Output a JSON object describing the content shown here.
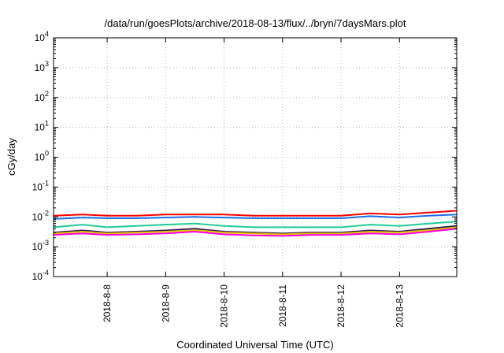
{
  "chart_data": {
    "type": "line",
    "title": "/data/run/goesPlots/archive/2018-08-13/flux/../bryn/7daysMars.plot",
    "xlabel": "Coordinated Universal Time (UTC)",
    "ylabel": "cGy/day",
    "yscale": "log",
    "ylim": [
      0.0001,
      10000
    ],
    "xlim": [
      "2018-08-07T02:00",
      "2018-08-13T23:30"
    ],
    "x_ticks": [
      "2018-8-8",
      "2018-8-9",
      "2018-8-10",
      "2018-8-11",
      "2018-8-12",
      "2018-8-13"
    ],
    "y_ticks": [
      {
        "base": "10",
        "exp": "-4"
      },
      {
        "base": "10",
        "exp": "-3"
      },
      {
        "base": "10",
        "exp": "-2"
      },
      {
        "base": "10",
        "exp": "-1"
      },
      {
        "base": "10",
        "exp": "0"
      },
      {
        "base": "10",
        "exp": "1"
      },
      {
        "base": "10",
        "exp": "2"
      },
      {
        "base": "10",
        "exp": "3"
      },
      {
        "base": "10",
        "exp": "4"
      }
    ],
    "grid": true,
    "series": [
      {
        "color": "#ff0000",
        "x": [
          "2018-08-07T02:00",
          "2018-08-07T14:00",
          "2018-08-08T00:00",
          "2018-08-08T12:00",
          "2018-08-09T00:00",
          "2018-08-09T12:00",
          "2018-08-10T00:00",
          "2018-08-10T12:00",
          "2018-08-11T00:00",
          "2018-08-11T12:00",
          "2018-08-12T00:00",
          "2018-08-12T12:00",
          "2018-08-13T00:00",
          "2018-08-13T12:00",
          "2018-08-13T23:30"
        ],
        "values": [
          0.011,
          0.012,
          0.011,
          0.011,
          0.012,
          0.012,
          0.012,
          0.011,
          0.011,
          0.011,
          0.011,
          0.013,
          0.012,
          0.014,
          0.016
        ]
      },
      {
        "color": "#1f6fe8",
        "x": [
          "2018-08-07T02:00",
          "2018-08-07T14:00",
          "2018-08-08T00:00",
          "2018-08-08T12:00",
          "2018-08-09T00:00",
          "2018-08-09T12:00",
          "2018-08-10T00:00",
          "2018-08-10T12:00",
          "2018-08-11T00:00",
          "2018-08-11T12:00",
          "2018-08-12T00:00",
          "2018-08-12T12:00",
          "2018-08-13T00:00",
          "2018-08-13T12:00",
          "2018-08-13T23:30"
        ],
        "values": [
          0.0085,
          0.0095,
          0.009,
          0.009,
          0.0095,
          0.01,
          0.0095,
          0.009,
          0.009,
          0.009,
          0.009,
          0.0105,
          0.0095,
          0.011,
          0.012
        ]
      },
      {
        "color": "#1fcc99",
        "x": [
          "2018-08-07T02:00",
          "2018-08-07T14:00",
          "2018-08-08T00:00",
          "2018-08-08T12:00",
          "2018-08-09T00:00",
          "2018-08-09T12:00",
          "2018-08-10T00:00",
          "2018-08-10T12:00",
          "2018-08-11T00:00",
          "2018-08-11T12:00",
          "2018-08-12T00:00",
          "2018-08-12T12:00",
          "2018-08-13T00:00",
          "2018-08-13T12:00",
          "2018-08-13T23:30"
        ],
        "values": [
          0.0045,
          0.0055,
          0.0045,
          0.005,
          0.0055,
          0.006,
          0.005,
          0.0045,
          0.0045,
          0.0045,
          0.0045,
          0.0055,
          0.005,
          0.006,
          0.007
        ]
      },
      {
        "color": "#2b1a5a",
        "x": [
          "2018-08-07T02:00",
          "2018-08-07T14:00",
          "2018-08-08T00:00",
          "2018-08-08T12:00",
          "2018-08-09T00:00",
          "2018-08-09T12:00",
          "2018-08-10T00:00",
          "2018-08-10T12:00",
          "2018-08-11T00:00",
          "2018-08-11T12:00",
          "2018-08-12T00:00",
          "2018-08-12T12:00",
          "2018-08-13T00:00",
          "2018-08-13T12:00",
          "2018-08-13T23:30"
        ],
        "values": [
          0.003,
          0.0035,
          0.003,
          0.0032,
          0.0035,
          0.004,
          0.0032,
          0.003,
          0.0028,
          0.003,
          0.003,
          0.0035,
          0.0032,
          0.004,
          0.005
        ]
      },
      {
        "color": "#e8c000",
        "x": [
          "2018-08-07T02:00",
          "2018-08-07T14:00",
          "2018-08-08T00:00",
          "2018-08-08T12:00",
          "2018-08-09T00:00",
          "2018-08-09T12:00",
          "2018-08-10T00:00",
          "2018-08-10T12:00",
          "2018-08-11T00:00",
          "2018-08-11T12:00",
          "2018-08-12T00:00",
          "2018-08-12T12:00",
          "2018-08-13T00:00",
          "2018-08-13T12:00",
          "2018-08-13T23:30"
        ],
        "values": [
          0.0028,
          0.0032,
          0.0028,
          0.003,
          0.0032,
          0.0036,
          0.003,
          0.0028,
          0.0026,
          0.0028,
          0.0028,
          0.0032,
          0.003,
          0.0036,
          0.0045
        ]
      },
      {
        "color": "#ff00dd",
        "x": [
          "2018-08-07T02:00",
          "2018-08-07T14:00",
          "2018-08-08T00:00",
          "2018-08-08T12:00",
          "2018-08-09T00:00",
          "2018-08-09T12:00",
          "2018-08-10T00:00",
          "2018-08-10T12:00",
          "2018-08-11T00:00",
          "2018-08-11T12:00",
          "2018-08-12T00:00",
          "2018-08-12T12:00",
          "2018-08-13T00:00",
          "2018-08-13T12:00",
          "2018-08-13T23:30"
        ],
        "values": [
          0.0025,
          0.0028,
          0.0025,
          0.0026,
          0.0028,
          0.0032,
          0.0026,
          0.0024,
          0.0023,
          0.0025,
          0.0025,
          0.0028,
          0.0026,
          0.0032,
          0.004
        ]
      }
    ]
  }
}
